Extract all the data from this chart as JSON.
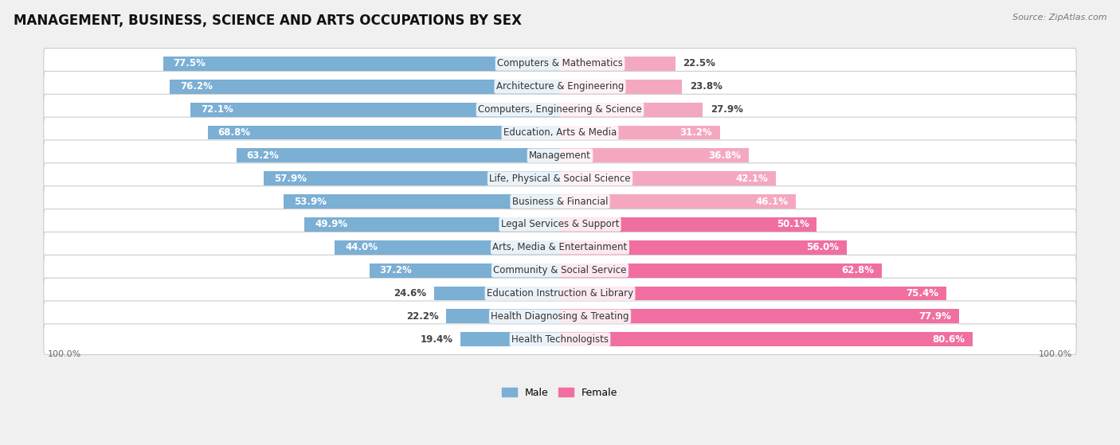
{
  "title": "MANAGEMENT, BUSINESS, SCIENCE AND ARTS OCCUPATIONS BY SEX",
  "source": "Source: ZipAtlas.com",
  "categories": [
    "Computers & Mathematics",
    "Architecture & Engineering",
    "Computers, Engineering & Science",
    "Education, Arts & Media",
    "Management",
    "Life, Physical & Social Science",
    "Business & Financial",
    "Legal Services & Support",
    "Arts, Media & Entertainment",
    "Community & Social Service",
    "Education Instruction & Library",
    "Health Diagnosing & Treating",
    "Health Technologists"
  ],
  "male_pct": [
    77.5,
    76.2,
    72.1,
    68.8,
    63.2,
    57.9,
    53.9,
    49.9,
    44.0,
    37.2,
    24.6,
    22.2,
    19.4
  ],
  "female_pct": [
    22.5,
    23.8,
    27.9,
    31.2,
    36.8,
    42.1,
    46.1,
    50.1,
    56.0,
    62.8,
    75.4,
    77.9,
    80.6
  ],
  "male_color": "#7bafd4",
  "female_color": "#f06fa0",
  "female_color_light": "#f4a8bf",
  "bg_color": "#f0f0f0",
  "row_bg_color": "#ffffff",
  "title_fontsize": 12,
  "label_fontsize": 8.5,
  "cat_fontsize": 8.5,
  "bar_height": 0.62,
  "legend_male": "Male",
  "legend_female": "Female"
}
